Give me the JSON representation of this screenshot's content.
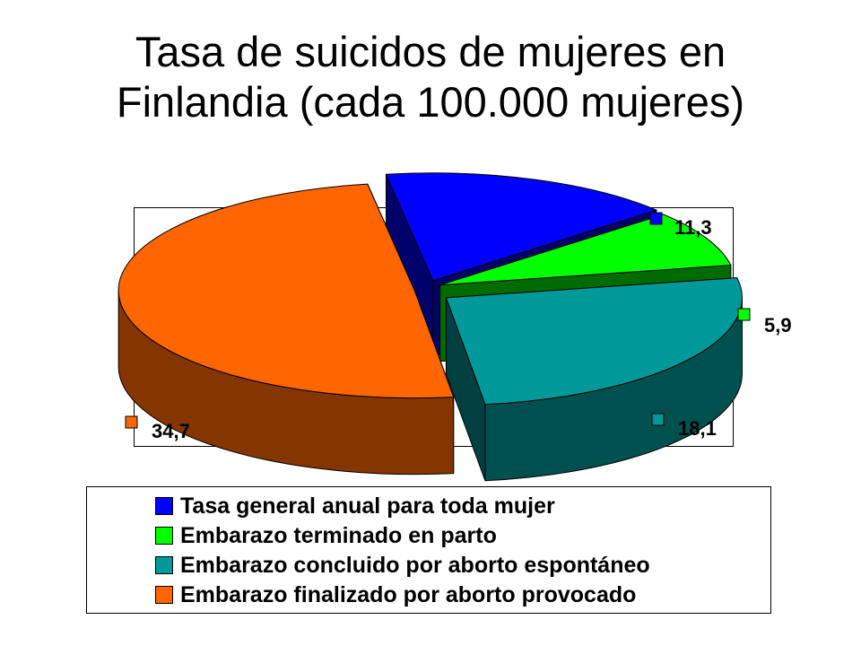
{
  "title": {
    "line1": "Tasa de suicidos de mujeres en",
    "line2": "Finlandia (cada 100.000 mujeres)"
  },
  "chart_data": {
    "type": "pie",
    "style": "3d-exploded",
    "legend_position": "bottom",
    "categories": [
      "Tasa general anual para toda mujer",
      "Embarazo terminado en parto",
      "Embarazo concluido por aborto espontáneo",
      "Embarazo finalizado por aborto provocado"
    ],
    "values": [
      11.3,
      5.9,
      18.1,
      34.7
    ],
    "labels": [
      "11,3",
      "5,9",
      "18,1",
      "34,7"
    ],
    "colors": [
      "#0000ff",
      "#00ff00",
      "#009999",
      "#ff6600"
    ]
  }
}
